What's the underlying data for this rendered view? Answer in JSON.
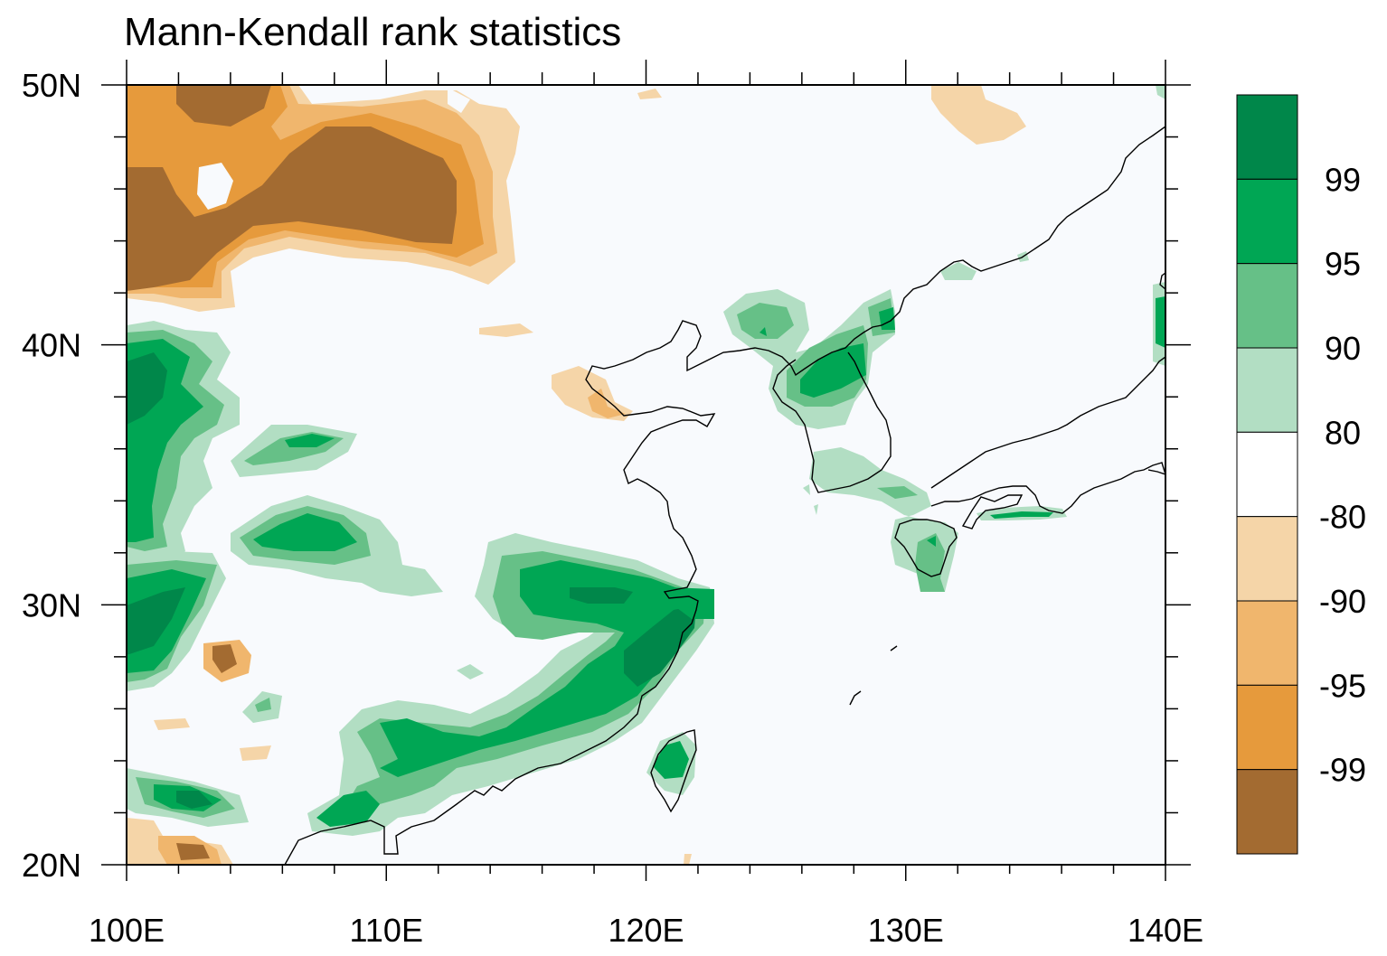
{
  "title": "Mann-Kendall rank statistics",
  "map": {
    "lon_range": [
      100,
      140
    ],
    "lat_range": [
      20,
      50
    ],
    "lon_ticks": [
      "100E",
      "110E",
      "120E",
      "130E",
      "140E"
    ],
    "lat_ticks": [
      "20N",
      "30N",
      "40N",
      "50N"
    ]
  },
  "colorbar": {
    "labels": [
      "99",
      "95",
      "90",
      "80",
      "-80",
      "-90",
      "-95",
      "-99"
    ],
    "colors": [
      "#00874a",
      "#00a654",
      "#66c087",
      "#b2dec3",
      "#ffffff",
      "#f5d5a8",
      "#f0b66d",
      "#e69a3c",
      "#a36b31"
    ]
  },
  "colors": {
    "background": "#f8fafd",
    "coast": "#000000"
  }
}
